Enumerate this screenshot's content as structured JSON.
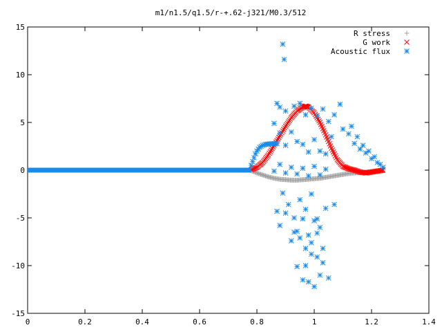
{
  "chart_data": {
    "type": "scatter",
    "title": "m1/n1.5/q1.5/r-+.62-j321/M0.3/512",
    "xlabel": "",
    "ylabel": "",
    "xlim": [
      0,
      1.4
    ],
    "ylim": [
      -15,
      15
    ],
    "xticks": [
      0,
      0.2,
      0.4,
      0.6,
      0.8,
      1,
      1.2,
      1.4
    ],
    "yticks": [
      -15,
      -10,
      -5,
      0,
      5,
      10,
      15
    ],
    "grid": false,
    "legend_position": "top-right",
    "series": [
      {
        "name": "R stress",
        "marker": "plus",
        "color": "#a0a0a0",
        "x": [
          0.78,
          0.8,
          0.82,
          0.84,
          0.86,
          0.88,
          0.9,
          0.92,
          0.94,
          0.96,
          0.98,
          1.0,
          1.02,
          1.04,
          1.06,
          1.08,
          1.1,
          1.12,
          1.14,
          1.16,
          1.18,
          1.2,
          1.22,
          1.24
        ],
        "y": [
          -0.05,
          -0.3,
          -0.5,
          -0.7,
          -0.85,
          -0.95,
          -1.0,
          -1.05,
          -1.05,
          -1.0,
          -0.95,
          -0.9,
          -0.85,
          -0.75,
          -0.65,
          -0.55,
          -0.45,
          -0.35,
          -0.3,
          -0.25,
          -0.2,
          -0.15,
          -0.1,
          -0.05
        ]
      },
      {
        "name": "G work",
        "marker": "cross",
        "color": "#ff0000",
        "x": [
          0.78,
          0.8,
          0.82,
          0.84,
          0.86,
          0.88,
          0.9,
          0.92,
          0.94,
          0.96,
          0.97,
          0.98,
          1.0,
          1.02,
          1.04,
          1.06,
          1.08,
          1.1,
          1.12,
          1.14,
          1.16,
          1.18,
          1.2,
          1.22,
          1.24
        ],
        "y": [
          0.05,
          0.3,
          0.8,
          1.6,
          2.6,
          3.6,
          4.6,
          5.5,
          6.2,
          6.6,
          6.7,
          6.6,
          6.0,
          5.0,
          3.7,
          2.3,
          1.1,
          0.4,
          0.15,
          0.0,
          -0.2,
          -0.3,
          -0.2,
          -0.1,
          0.0
        ]
      },
      {
        "name": "Acoustic flux",
        "marker": "star",
        "color": "#1a8ae8",
        "x": [
          0.78,
          0.785,
          0.79,
          0.795,
          0.8,
          0.805,
          0.81,
          0.815,
          0.82,
          0.825,
          0.83,
          0.835,
          0.84,
          0.845,
          0.85,
          0.855,
          0.86,
          0.865,
          0.87,
          0.89,
          0.895,
          0.87,
          0.88,
          0.9,
          0.93,
          0.95,
          0.97,
          0.99,
          1.01,
          1.03,
          1.05,
          1.07,
          1.09,
          0.86,
          0.88,
          0.9,
          0.92,
          0.94,
          0.96,
          0.98,
          1.0,
          1.02,
          1.04,
          1.06,
          0.86,
          0.88,
          0.9,
          0.92,
          0.94,
          0.96,
          0.98,
          1.0,
          1.02,
          1.04,
          0.87,
          0.89,
          0.91,
          0.93,
          0.95,
          0.97,
          0.99,
          1.01,
          0.88,
          0.9,
          0.92,
          0.94,
          0.96,
          0.98,
          1.0,
          1.02,
          1.04,
          0.93,
          0.95,
          0.97,
          0.99,
          1.01,
          1.03,
          0.94,
          0.96,
          0.98,
          1.0,
          1.02,
          0.97,
          0.99,
          1.01,
          1.03,
          1.05,
          1.07,
          1.1,
          1.12,
          1.14,
          1.16,
          1.18,
          1.2,
          1.22,
          1.24,
          1.13,
          1.15,
          1.17,
          1.19,
          1.21,
          1.23
        ],
        "y": [
          0.5,
          0.9,
          1.3,
          1.7,
          2.0,
          2.2,
          2.4,
          2.5,
          2.6,
          2.65,
          2.7,
          2.72,
          2.74,
          2.75,
          2.76,
          2.76,
          2.77,
          2.77,
          2.78,
          13.2,
          11.6,
          7.0,
          6.6,
          6.2,
          6.7,
          7.0,
          5.8,
          6.5,
          5.7,
          6.4,
          5.1,
          5.8,
          6.9,
          4.9,
          3.9,
          2.6,
          4.0,
          3.0,
          2.7,
          1.9,
          3.2,
          2.0,
          1.7,
          3.5,
          -0.1,
          0.6,
          -0.3,
          0.3,
          -0.4,
          0.2,
          -0.6,
          0.4,
          -0.5,
          0.1,
          -4.3,
          -2.4,
          -3.6,
          -5.0,
          -3.1,
          -4.1,
          -2.5,
          -5.1,
          -5.8,
          -4.5,
          -7.4,
          -6.4,
          -5.1,
          -6.8,
          -5.3,
          -6.0,
          -4.0,
          -6.5,
          -7.1,
          -8.2,
          -7.6,
          -9.1,
          -8.2,
          -10.1,
          -11.5,
          -11.7,
          -12.2,
          -11.0,
          -10.0,
          -8.8,
          -6.6,
          -9.7,
          -11.3,
          -3.6,
          4.3,
          3.8,
          2.8,
          2.2,
          1.8,
          1.2,
          0.8,
          0.3,
          4.6,
          3.5,
          2.6,
          2.0,
          1.4,
          0.6
        ]
      },
      {
        "name": "",
        "marker": "star",
        "color": "#1a8ae8",
        "x_line": [
          0,
          0.78
        ],
        "y_line": [
          0,
          0
        ]
      }
    ]
  }
}
